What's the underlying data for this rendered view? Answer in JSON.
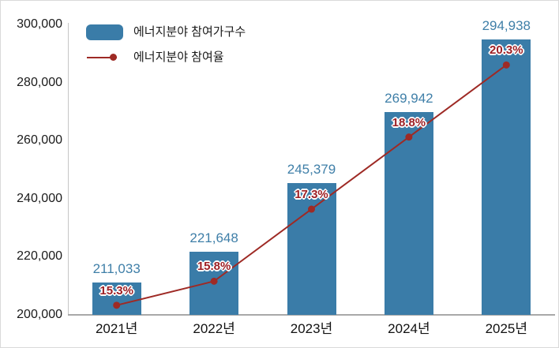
{
  "chart_data": {
    "type": "bar+line",
    "title": "",
    "categories": [
      "2021년",
      "2022년",
      "2023년",
      "2024년",
      "2025년"
    ],
    "series": [
      {
        "name": "에너지분야 참여가구수",
        "chart_type": "bar",
        "values": [
          211033,
          221648,
          245379,
          269942,
          294938
        ],
        "data_labels": [
          "211,033",
          "221,648",
          "245,379",
          "269,942",
          "294,938"
        ],
        "color": "#3a7ca8",
        "label_color": "#3f7fa8"
      },
      {
        "name": "에너지분야 참여율",
        "chart_type": "line",
        "values": [
          15.3,
          15.8,
          17.3,
          18.8,
          20.3
        ],
        "data_labels": [
          "15.3%",
          "15.8%",
          "17.3%",
          "18.8%",
          "20.3%"
        ],
        "color": "#9e2a25",
        "label_color": "#9e2025"
      }
    ],
    "y_axis": {
      "min": 200000,
      "max": 300000,
      "step": 20000,
      "tick_labels": [
        "200,000",
        "220,000",
        "240,000",
        "260,000",
        "280,000",
        "300,000"
      ]
    },
    "x_axis": {
      "tick_labels": [
        "2021년",
        "2022년",
        "2023년",
        "2024년",
        "2025년"
      ]
    },
    "legend_position": "top-left",
    "grid": false,
    "background": "#ffffff"
  }
}
